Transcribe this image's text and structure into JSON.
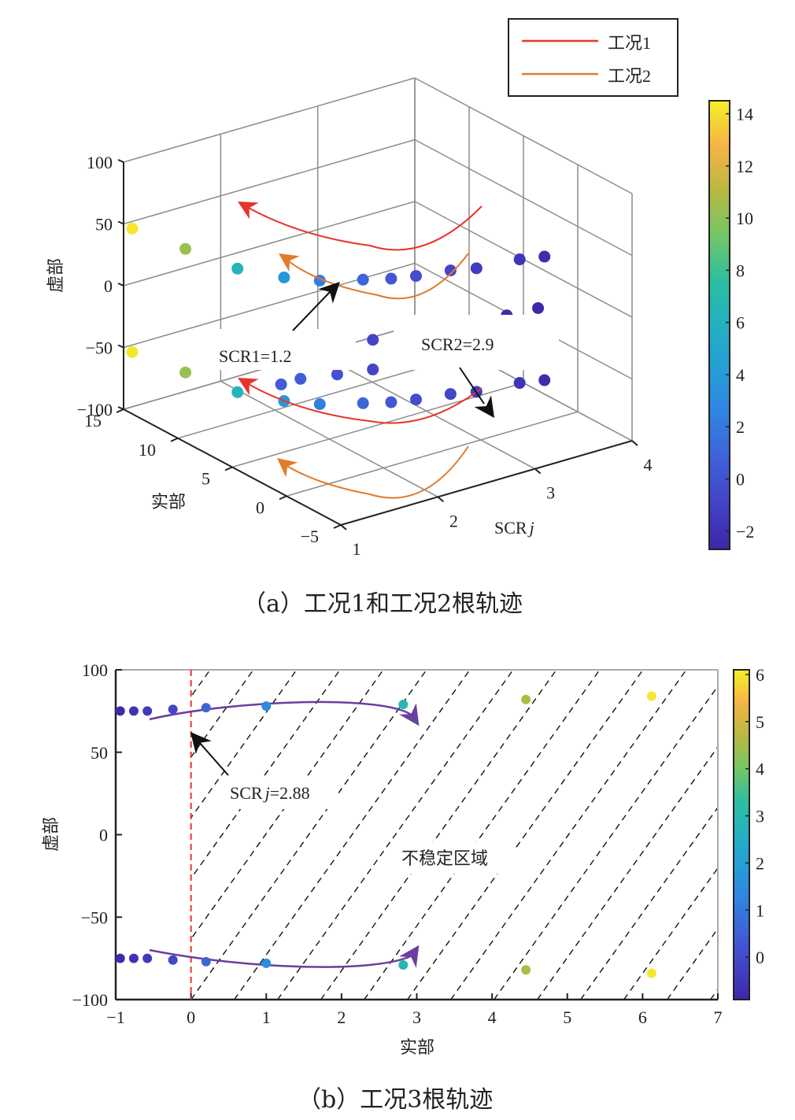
{
  "chart_data": [
    {
      "id": "a",
      "type": "scatter",
      "projection": "3d",
      "caption": "（a）工况1和工况2根轨迹",
      "xlabel": "SCRj",
      "xlabel_main": "SCR",
      "xlabel_italic": "j",
      "ylabel": "实部",
      "zlabel": "虚部",
      "xticks": [
        1,
        2,
        3,
        4
      ],
      "yticks": [
        -5,
        0,
        5,
        10,
        15
      ],
      "zticks": [
        -100,
        -50,
        0,
        50,
        100
      ],
      "xlim": [
        1,
        4
      ],
      "ylim": [
        -5,
        15
      ],
      "zlim": [
        -100,
        100
      ],
      "grid": true,
      "legend": {
        "position": "top-right",
        "entries": [
          {
            "label": "工况1",
            "color": "#e8342a"
          },
          {
            "label": "工况2",
            "color": "#e07b2a"
          }
        ]
      },
      "colorbar": {
        "ticks": [
          -2,
          0,
          2,
          4,
          6,
          8,
          10,
          12,
          14
        ],
        "range": [
          -2.7,
          14.5
        ],
        "colormap": "parula"
      },
      "series": [
        {
          "name": "工况1",
          "points": [
            {
              "scr": 1.0,
              "re": 14.2,
              "im": 72
            },
            {
              "scr": 1.1,
              "re": 10.2,
              "im": 60
            },
            {
              "scr": 1.2,
              "re": 6.3,
              "im": 52
            },
            {
              "scr": 1.4,
              "re": 3.8,
              "im": 50
            },
            {
              "scr": 1.6,
              "re": 2.3,
              "im": 50
            },
            {
              "scr": 1.9,
              "re": 1.0,
              "im": 50
            },
            {
              "scr": 2.1,
              "re": 0.2,
              "im": 50
            },
            {
              "scr": 2.3,
              "re": -0.3,
              "im": 50
            },
            {
              "scr": 2.6,
              "re": -0.8,
              "im": 50
            },
            {
              "scr": 2.8,
              "re": -1.4,
              "im": 50
            },
            {
              "scr": 3.2,
              "re": -1.8,
              "im": 50
            },
            {
              "scr": 3.4,
              "re": -2.3,
              "im": 50
            }
          ],
          "annotation": "SCR1=1.2"
        },
        {
          "name": "工况2",
          "points": [
            {
              "scr": 1.0,
              "re": 0.5,
              "im": 12
            },
            {
              "scr": 1.2,
              "re": 0.5,
              "im": 12
            },
            {
              "scr": 1.5,
              "re": -0.2,
              "im": 12
            },
            {
              "scr": 1.8,
              "re": -0.8,
              "im": 12
            },
            {
              "scr": 2.1,
              "re": -1.3,
              "im": 12
            },
            {
              "scr": 2.4,
              "re": -1.8,
              "im": 12
            },
            {
              "scr": 2.7,
              "re": -2.1,
              "im": 12
            },
            {
              "scr": 3.0,
              "re": -2.4,
              "im": 12
            },
            {
              "scr": 3.3,
              "re": -2.6,
              "im": 12
            }
          ],
          "annotation": "SCR2=2.9"
        }
      ]
    },
    {
      "id": "b",
      "type": "scatter",
      "caption": "（b）工况3根轨迹",
      "xlabel": "实部",
      "ylabel": "虚部",
      "xticks": [
        -1,
        0,
        1,
        2,
        3,
        4,
        5,
        6,
        7
      ],
      "yticks": [
        -100,
        -50,
        0,
        50,
        100
      ],
      "xlim": [
        -1,
        7
      ],
      "ylim": [
        -100,
        100
      ],
      "region_label": "不稳定区域",
      "boundary": {
        "x": 0,
        "color": "#e8342a",
        "style": "dashed"
      },
      "annotation": "SCRj=2.88",
      "annotation_main": "SCR",
      "annotation_italic": "j",
      "annotation_value": "=2.88",
      "trajectory_color": "#6a3fa0",
      "colorbar": {
        "ticks": [
          0,
          1,
          2,
          3,
          4,
          5,
          6
        ],
        "range": [
          -0.9,
          6.1
        ],
        "colormap": "parula"
      },
      "points": [
        {
          "re": -0.94,
          "im": 75,
          "c": -0.8
        },
        {
          "re": -0.76,
          "im": 75,
          "c": -0.6
        },
        {
          "re": -0.58,
          "im": 75,
          "c": -0.4
        },
        {
          "re": -0.24,
          "im": 76,
          "c": -0.1
        },
        {
          "re": 0.2,
          "im": 77,
          "c": 0.6
        },
        {
          "re": 1.0,
          "im": 78,
          "c": 1.5
        },
        {
          "re": 2.82,
          "im": 79,
          "c": 2.9
        },
        {
          "re": 4.45,
          "im": 82,
          "c": 4.6
        },
        {
          "re": 6.12,
          "im": 84,
          "c": 6.0
        },
        {
          "re": -0.94,
          "im": -75,
          "c": -0.8
        },
        {
          "re": -0.76,
          "im": -75,
          "c": -0.6
        },
        {
          "re": -0.58,
          "im": -75,
          "c": -0.4
        },
        {
          "re": -0.24,
          "im": -76,
          "c": -0.1
        },
        {
          "re": 0.2,
          "im": -77,
          "c": 0.6
        },
        {
          "re": 1.0,
          "im": -78,
          "c": 1.5
        },
        {
          "re": 2.82,
          "im": -79,
          "c": 2.9
        },
        {
          "re": 4.45,
          "im": -82,
          "c": 4.6
        },
        {
          "re": 6.12,
          "im": -84,
          "c": 6.0
        }
      ]
    }
  ]
}
